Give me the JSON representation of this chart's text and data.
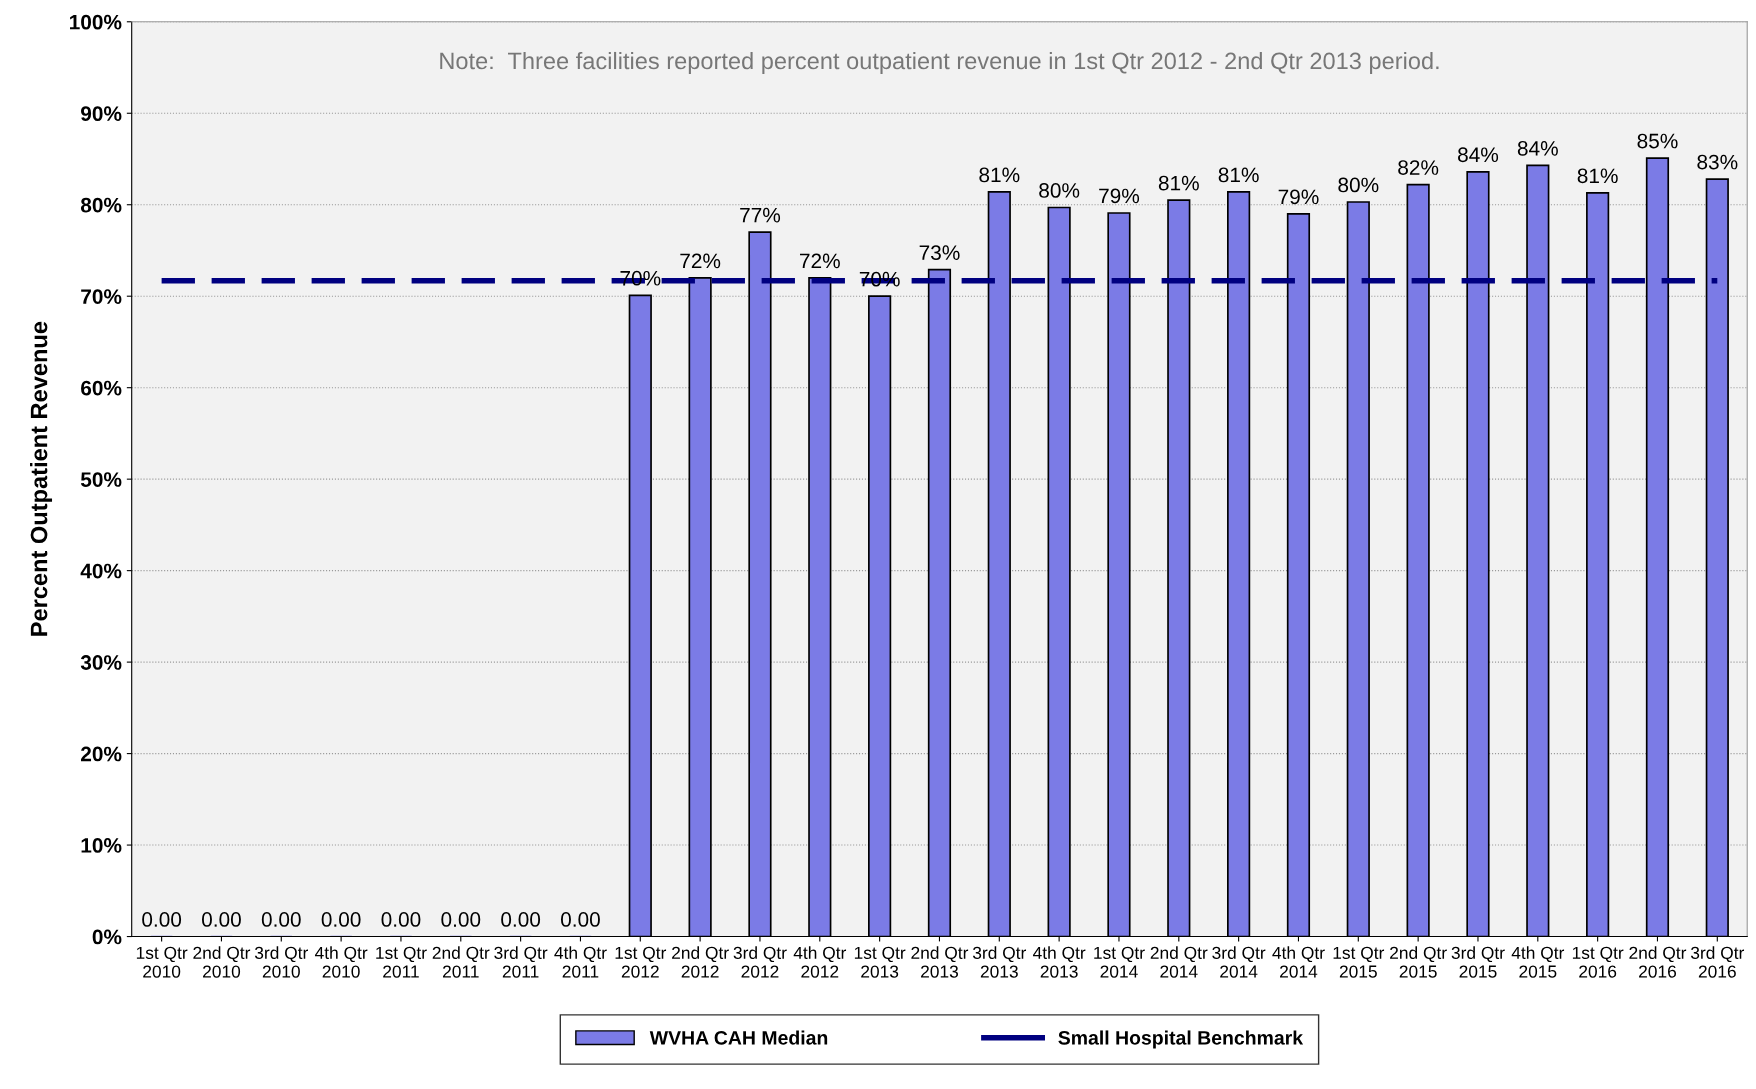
{
  "chart_data": {
    "type": "bar",
    "ylabel": "Percent Outpatient Revenue",
    "categories": [
      "1st Qtr\n2010",
      "2nd Qtr\n2010",
      "3rd Qtr\n2010",
      "4th Qtr\n2010",
      "1st Qtr\n2011",
      "2nd Qtr\n2011",
      "3rd Qtr\n2011",
      "4th Qtr\n2011",
      "1st Qtr\n2012",
      "2nd Qtr\n2012",
      "3rd Qtr\n2012",
      "4th Qtr\n2012",
      "1st Qtr\n2013",
      "2nd Qtr\n2013",
      "3rd Qtr\n2013",
      "4th Qtr\n2013",
      "1st Qtr\n2014",
      "2nd Qtr\n2014",
      "3rd Qtr\n2014",
      "4th Qtr\n2014",
      "1st Qtr\n2015",
      "2nd Qtr\n2015",
      "3rd Qtr\n2015",
      "4th Qtr\n2015",
      "1st Qtr\n2016",
      "2nd Qtr\n2016",
      "3rd Qtr\n2016"
    ],
    "series": [
      {
        "name": "WVHA CAH Median",
        "color": "#7b7be6",
        "values": [
          0,
          0,
          0,
          0,
          0,
          0,
          0,
          0,
          70.1,
          72.0,
          77.0,
          72.0,
          70.0,
          72.9,
          81.4,
          79.7,
          79.1,
          80.5,
          81.4,
          79.0,
          80.3,
          82.2,
          83.6,
          84.3,
          81.3,
          85.1,
          82.8
        ],
        "value_labels": [
          "0.00",
          "0.00",
          "0.00",
          "0.00",
          "0.00",
          "0.00",
          "0.00",
          "0.00",
          "70%",
          "72%",
          "77%",
          "72%",
          "70%",
          "73%",
          "81%",
          "80%",
          "79%",
          "81%",
          "81%",
          "79%",
          "80%",
          "82%",
          "84%",
          "84%",
          "81%",
          "85%",
          "83%"
        ]
      },
      {
        "name": "Small Hospital Benchmark",
        "type": "line",
        "color": "#000080",
        "line_style": "dashed",
        "values": [
          71.7,
          71.7,
          71.7,
          71.7,
          71.7,
          71.7,
          71.7,
          71.7,
          71.7,
          71.7,
          71.7,
          71.7,
          71.7,
          71.7,
          71.7,
          71.7,
          71.7,
          71.7,
          71.7,
          71.7,
          71.7,
          71.7,
          71.7,
          71.7,
          71.7,
          71.7,
          71.7
        ]
      }
    ],
    "ylim": [
      0,
      100
    ],
    "yticks": [
      {
        "value": 0,
        "label": "0%"
      },
      {
        "value": 10,
        "label": "10%"
      },
      {
        "value": 20,
        "label": "20%"
      },
      {
        "value": 30,
        "label": "30%"
      },
      {
        "value": 40,
        "label": "40%"
      },
      {
        "value": 50,
        "label": "50%"
      },
      {
        "value": 60,
        "label": "60%"
      },
      {
        "value": 70,
        "label": "70%"
      },
      {
        "value": 80,
        "label": "80%"
      },
      {
        "value": 90,
        "label": "90%"
      },
      {
        "value": 100,
        "label": "100%"
      }
    ],
    "grid": "y",
    "legend": "bottom",
    "annotations": [
      "Note:  Three facilities reported percent outpatient revenue in 1st Qtr 2012 - 2nd Qtr 2013 period."
    ]
  }
}
